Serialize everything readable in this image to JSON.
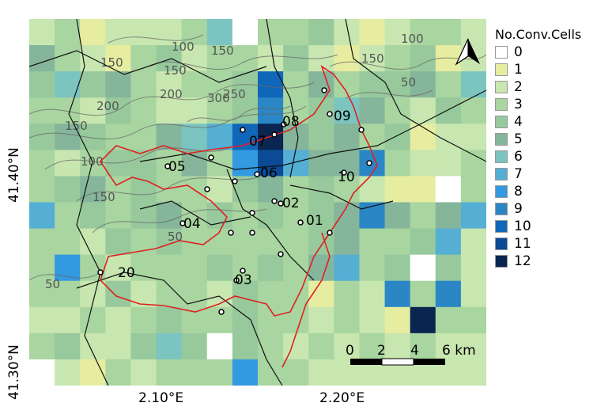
{
  "legend": {
    "title": "No.Conv.Cells",
    "entries": [
      {
        "label": "0",
        "color": "#ffffff"
      },
      {
        "label": "1",
        "color": "#e6eda0"
      },
      {
        "label": "2",
        "color": "#c8e6b0"
      },
      {
        "label": "3",
        "color": "#a8d5a0"
      },
      {
        "label": "4",
        "color": "#97c99c"
      },
      {
        "label": "5",
        "color": "#85b59a"
      },
      {
        "label": "6",
        "color": "#7cc4c0"
      },
      {
        "label": "7",
        "color": "#55aed4"
      },
      {
        "label": "8",
        "color": "#3399e0"
      },
      {
        "label": "9",
        "color": "#2a86c4"
      },
      {
        "label": "10",
        "color": "#1066b8"
      },
      {
        "label": "11",
        "color": "#0b4a94"
      },
      {
        "label": "12",
        "color": "#0a2550"
      }
    ]
  },
  "axes": {
    "lat_labels": [
      "41.40°N",
      "41.30°N"
    ],
    "lon_labels": [
      "2.10°E",
      "2.20°E"
    ]
  },
  "stations": [
    "01",
    "02",
    "03",
    "04",
    "05",
    "06",
    "07",
    "08",
    "09",
    "10",
    "20"
  ],
  "contour_labels": [
    "50",
    "100",
    "150",
    "200",
    "250",
    "300"
  ],
  "scale_bar": {
    "ticks": [
      "0",
      "2",
      "4",
      "6 km"
    ]
  },
  "north_arrow": "north-arrow"
}
